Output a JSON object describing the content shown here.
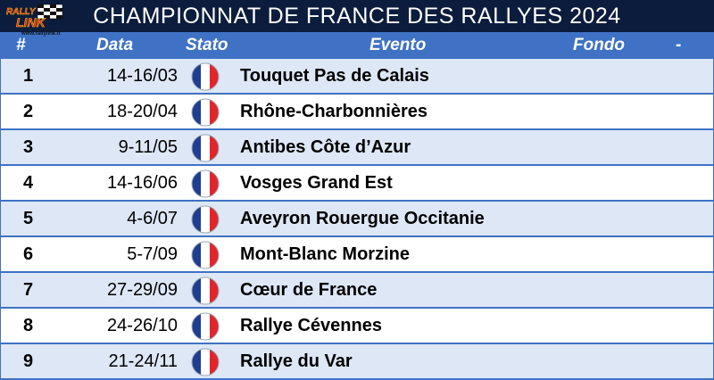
{
  "title": "CHAMPIONNAT DE FRANCE DES RALLYES 2024",
  "logo": {
    "text_top": "RALLY",
    "text_main": "LINK",
    "url_text": "www.rallylink.it"
  },
  "headers": {
    "num": "#",
    "data": "Data",
    "stato": "Stato",
    "evento": "Evento",
    "fondo": "Fondo",
    "dash": "-"
  },
  "flag_colors": {
    "blue": "#1f3e8f",
    "white": "#ffffff",
    "red": "#e0262b"
  },
  "rows": [
    {
      "num": "1",
      "date": "14-16/03",
      "flag": "france-flag-icon",
      "event": "Touquet Pas de Calais"
    },
    {
      "num": "2",
      "date": "18-20/04",
      "flag": "france-flag-icon",
      "event": "Rhône-Charbonnières"
    },
    {
      "num": "3",
      "date": "9-11/05",
      "flag": "france-flag-icon",
      "event": "Antibes Côte d’Azur"
    },
    {
      "num": "4",
      "date": "14-16/06",
      "flag": "france-flag-icon",
      "event": "Vosges Grand Est"
    },
    {
      "num": "5",
      "date": "4-6/07",
      "flag": "france-flag-icon",
      "event": "Aveyron Rouergue Occitanie"
    },
    {
      "num": "6",
      "date": "5-7/09",
      "flag": "france-flag-icon",
      "event": "Mont-Blanc Morzine"
    },
    {
      "num": "7",
      "date": "27-29/09",
      "flag": "france-flag-icon",
      "event": "Cœur de France"
    },
    {
      "num": "8",
      "date": "24-26/10",
      "flag": "france-flag-icon",
      "event": "Rallye Cévennes"
    },
    {
      "num": "9",
      "date": "21-24/11",
      "flag": "france-flag-icon",
      "event": "Rallye du Var"
    }
  ]
}
